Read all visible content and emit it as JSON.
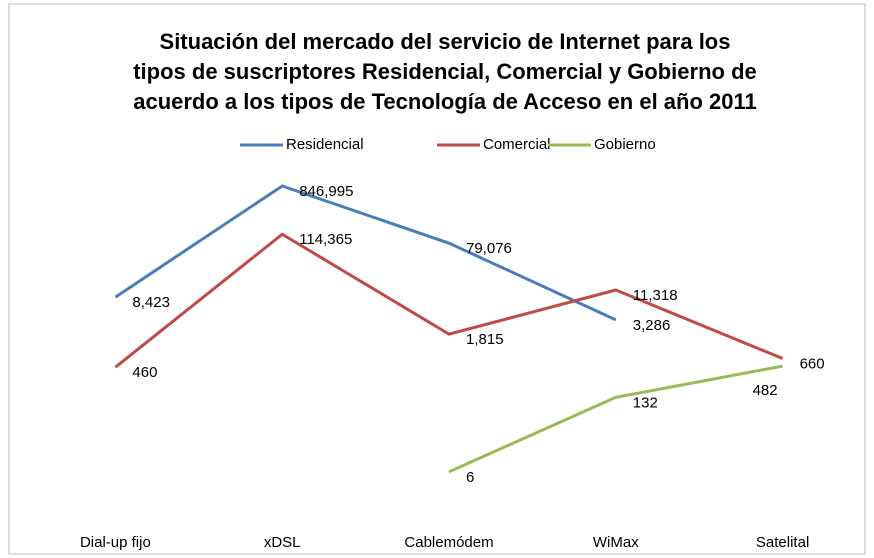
{
  "chart_data": {
    "type": "line",
    "title": [
      "Situación del  mercado del servicio de Internet para los",
      "tipos de suscriptores Residencial, Comercial y Gobierno de",
      "acuerdo a los tipos de Tecnología de Acceso en el año 2011"
    ],
    "categories": [
      "Dial-up fijo",
      "xDSL",
      "Cablemódem",
      "WiMax",
      "Satelital"
    ],
    "series": [
      {
        "name": "Residencial",
        "color": "#4a7ebb",
        "values": [
          8423,
          846995,
          79076,
          3286,
          null
        ],
        "value_labels": [
          "8,423",
          "846,995",
          "79,076",
          "3,286",
          null
        ]
      },
      {
        "name": "Comercial",
        "color": "#be4b48",
        "values": [
          460,
          114365,
          1815,
          11318,
          660
        ],
        "value_labels": [
          "460",
          "114,365",
          "1,815",
          "11,318",
          "660"
        ]
      },
      {
        "name": "Gobierno",
        "color": "#98b954",
        "values": [
          null,
          null,
          6,
          132,
          482
        ],
        "value_labels": [
          null,
          null,
          "6",
          "132",
          "482"
        ]
      }
    ],
    "ylim": [
      1,
      1000000
    ],
    "log": true,
    "legend": "top"
  }
}
